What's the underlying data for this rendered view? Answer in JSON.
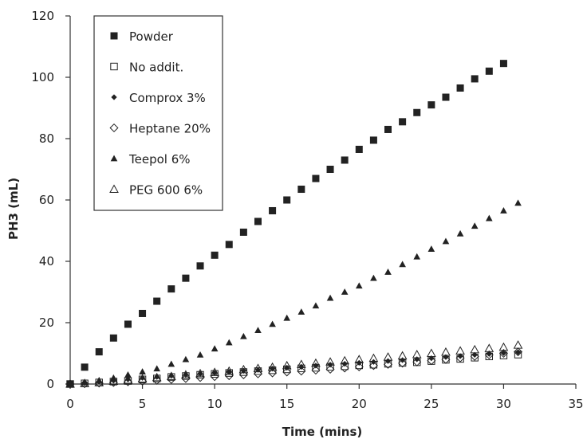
{
  "chart_data": {
    "type": "scatter",
    "xlabel": "Time (mins)",
    "ylabel": "PH3 (mL)",
    "xlim": [
      0,
      35
    ],
    "ylim": [
      0,
      120
    ],
    "x_ticks": [
      0,
      5,
      10,
      15,
      20,
      25,
      30,
      35
    ],
    "y_ticks": [
      0,
      20,
      40,
      60,
      80,
      100,
      120
    ],
    "grid": false,
    "legend_position": "top-left",
    "series": [
      {
        "name": "Powder",
        "marker": "filled-square",
        "color": "#222222",
        "x": [
          0,
          1,
          2,
          3,
          4,
          5,
          6,
          7,
          8,
          9,
          10,
          11,
          12,
          13,
          14,
          15,
          16,
          17,
          18,
          19,
          20,
          21,
          22,
          23,
          24,
          25,
          26,
          27,
          28,
          29,
          30
        ],
        "y": [
          0,
          5.5,
          10.5,
          15,
          19.5,
          23,
          27,
          31,
          34.5,
          38.5,
          42,
          45.5,
          49.5,
          53,
          56.5,
          60,
          63.5,
          67,
          70,
          73,
          76.5,
          79.5,
          83,
          85.5,
          88.5,
          91,
          93.5,
          96.5,
          99.5,
          102,
          104.5
        ]
      },
      {
        "name": "No addit.",
        "marker": "open-square",
        "color": "#222222",
        "x": [
          0,
          1,
          2,
          3,
          4,
          5,
          6,
          7,
          8,
          9,
          10,
          11,
          12,
          13,
          14,
          15,
          16,
          17,
          18,
          19,
          20,
          21,
          22,
          23,
          24,
          25,
          26,
          27,
          28,
          29,
          30,
          31
        ],
        "y": [
          0,
          0.2,
          0.5,
          0.8,
          1.0,
          1.5,
          1.8,
          2.3,
          2.6,
          3.0,
          3.3,
          3.6,
          3.9,
          4.2,
          4.5,
          4.8,
          5.1,
          5.3,
          5.6,
          5.8,
          6.1,
          6.3,
          6.6,
          6.9,
          7.1,
          7.5,
          7.9,
          8.2,
          8.6,
          9.0,
          9.3,
          9.6
        ]
      },
      {
        "name": "Comprox 3%",
        "marker": "filled-diamond",
        "color": "#222222",
        "x": [
          0,
          1,
          2,
          3,
          4,
          5,
          6,
          7,
          8,
          9,
          10,
          11,
          12,
          13,
          14,
          15,
          16,
          17,
          18,
          19,
          20,
          21,
          22,
          23,
          24,
          25,
          26,
          27,
          28,
          29,
          30,
          31
        ],
        "y": [
          0,
          0.3,
          0.7,
          1.1,
          1.5,
          2.0,
          2.3,
          2.7,
          3.0,
          3.3,
          3.6,
          3.9,
          4.3,
          4.6,
          5.0,
          5.3,
          5.6,
          6.0,
          6.3,
          6.6,
          6.9,
          7.2,
          7.5,
          7.8,
          8.1,
          8.4,
          8.8,
          9.1,
          9.5,
          9.8,
          10.1,
          10.4
        ]
      },
      {
        "name": "Heptane 20%",
        "marker": "open-diamond",
        "color": "#222222",
        "x": [
          0,
          1,
          2,
          3,
          4,
          5,
          6,
          7,
          8,
          9,
          10,
          11,
          12,
          13,
          14,
          15,
          16,
          17,
          18,
          19,
          20,
          21,
          22,
          23,
          24,
          25,
          26,
          27,
          28,
          29,
          30,
          31
        ],
        "y": [
          0,
          0.1,
          0.3,
          0.5,
          0.7,
          0.9,
          1.2,
          1.5,
          1.8,
          2.1,
          2.4,
          2.7,
          3.0,
          3.3,
          3.6,
          3.9,
          4.2,
          4.5,
          4.8,
          5.2,
          5.6,
          6.0,
          6.4,
          6.8,
          7.2,
          7.6,
          8.0,
          8.5,
          9.0,
          9.5,
          10.0,
          10.5
        ]
      },
      {
        "name": "Teepol 6%",
        "marker": "filled-triangle",
        "color": "#222222",
        "x": [
          0,
          1,
          2,
          3,
          4,
          5,
          6,
          7,
          8,
          9,
          10,
          11,
          12,
          13,
          14,
          15,
          16,
          17,
          18,
          19,
          20,
          21,
          22,
          23,
          24,
          25,
          26,
          27,
          28,
          29,
          30,
          31
        ],
        "y": [
          0,
          0.5,
          1.2,
          2.0,
          3.0,
          4.0,
          5.0,
          6.5,
          8.0,
          9.5,
          11.5,
          13.5,
          15.5,
          17.5,
          19.5,
          21.5,
          23.5,
          25.5,
          28,
          30,
          32,
          34.5,
          36.5,
          39,
          41.5,
          44,
          46.5,
          49,
          51.5,
          54,
          56.5,
          59
        ]
      },
      {
        "name": "PEG 600 6%",
        "marker": "open-triangle",
        "color": "#222222",
        "x": [
          0,
          1,
          2,
          3,
          4,
          5,
          6,
          7,
          8,
          9,
          10,
          11,
          12,
          13,
          14,
          15,
          16,
          17,
          18,
          19,
          20,
          21,
          22,
          23,
          24,
          25,
          26,
          27,
          28,
          29,
          30,
          31
        ],
        "y": [
          0,
          0.2,
          0.5,
          0.9,
          1.3,
          1.7,
          2.1,
          2.5,
          3.0,
          3.4,
          3.8,
          4.2,
          4.7,
          5.1,
          5.5,
          6.0,
          6.4,
          6.8,
          7.2,
          7.6,
          8.0,
          8.4,
          8.8,
          9.2,
          9.6,
          10.0,
          10.4,
          10.8,
          11.2,
          11.6,
          12.0,
          12.7
        ]
      }
    ]
  }
}
